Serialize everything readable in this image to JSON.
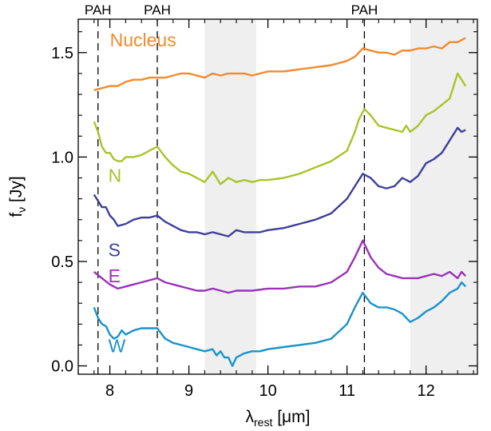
{
  "chart_data": {
    "type": "line",
    "xlabel": "λ",
    "xlabel_sub": "rest",
    "xlabel_unit": " [μm]",
    "ylabel": "f",
    "ylabel_sub": "ν",
    "ylabel_unit": " [Jy]",
    "xlim": [
      7.6,
      12.65
    ],
    "ylim": [
      -0.04,
      1.66
    ],
    "xticks": [
      8,
      9,
      10,
      11,
      12
    ],
    "xtick_labels": [
      "8",
      "9",
      "10",
      "11",
      "12"
    ],
    "yticks": [
      0.0,
      0.5,
      1.0,
      1.5
    ],
    "ytick_labels": [
      "0.0",
      "0.5",
      "1.0",
      "1.5"
    ],
    "grid": false,
    "shaded_regions": [
      [
        9.2,
        9.85
      ],
      [
        11.8,
        12.65
      ]
    ],
    "pah_lines": [
      {
        "x": 7.85,
        "label": "PAH"
      },
      {
        "x": 8.6,
        "label": "PAH"
      },
      {
        "x": 11.22,
        "label": "PAH"
      }
    ],
    "series": [
      {
        "name": "Nucleus",
        "color": "#f28a2e",
        "label_pos": [
          8.0,
          1.53
        ],
        "points": [
          [
            7.8,
            1.32
          ],
          [
            7.9,
            1.33
          ],
          [
            8.0,
            1.34
          ],
          [
            8.1,
            1.34
          ],
          [
            8.2,
            1.36
          ],
          [
            8.3,
            1.37
          ],
          [
            8.4,
            1.37
          ],
          [
            8.5,
            1.38
          ],
          [
            8.6,
            1.38
          ],
          [
            8.7,
            1.38
          ],
          [
            8.8,
            1.39
          ],
          [
            8.9,
            1.4
          ],
          [
            9.0,
            1.4
          ],
          [
            9.1,
            1.39
          ],
          [
            9.2,
            1.38
          ],
          [
            9.3,
            1.4
          ],
          [
            9.4,
            1.39
          ],
          [
            9.5,
            1.4
          ],
          [
            9.6,
            1.4
          ],
          [
            9.7,
            1.4
          ],
          [
            9.8,
            1.39
          ],
          [
            9.9,
            1.4
          ],
          [
            10.0,
            1.41
          ],
          [
            10.2,
            1.41
          ],
          [
            10.4,
            1.42
          ],
          [
            10.6,
            1.43
          ],
          [
            10.8,
            1.44
          ],
          [
            11.0,
            1.46
          ],
          [
            11.1,
            1.48
          ],
          [
            11.2,
            1.52
          ],
          [
            11.3,
            1.51
          ],
          [
            11.4,
            1.5
          ],
          [
            11.5,
            1.5
          ],
          [
            11.6,
            1.49
          ],
          [
            11.7,
            1.51
          ],
          [
            11.8,
            1.51
          ],
          [
            11.9,
            1.52
          ],
          [
            12.0,
            1.52
          ],
          [
            12.1,
            1.53
          ],
          [
            12.2,
            1.52
          ],
          [
            12.3,
            1.55
          ],
          [
            12.4,
            1.55
          ],
          [
            12.5,
            1.57
          ]
        ]
      },
      {
        "name": "N",
        "color": "#a8c42a",
        "label_pos": [
          7.98,
          0.88
        ],
        "points": [
          [
            7.8,
            1.17
          ],
          [
            7.85,
            1.12
          ],
          [
            7.9,
            1.05
          ],
          [
            7.95,
            1.02
          ],
          [
            8.0,
            1.02
          ],
          [
            8.05,
            0.99
          ],
          [
            8.1,
            0.98
          ],
          [
            8.15,
            0.98
          ],
          [
            8.2,
            1.0
          ],
          [
            8.3,
            1.0
          ],
          [
            8.4,
            1.01
          ],
          [
            8.5,
            1.03
          ],
          [
            8.6,
            1.05
          ],
          [
            8.7,
            1.0
          ],
          [
            8.8,
            0.96
          ],
          [
            8.9,
            0.93
          ],
          [
            9.0,
            0.92
          ],
          [
            9.1,
            0.9
          ],
          [
            9.2,
            0.88
          ],
          [
            9.3,
            0.93
          ],
          [
            9.35,
            0.9
          ],
          [
            9.4,
            0.87
          ],
          [
            9.5,
            0.9
          ],
          [
            9.6,
            0.88
          ],
          [
            9.7,
            0.89
          ],
          [
            9.8,
            0.88
          ],
          [
            9.9,
            0.89
          ],
          [
            10.0,
            0.89
          ],
          [
            10.2,
            0.9
          ],
          [
            10.4,
            0.92
          ],
          [
            10.6,
            0.95
          ],
          [
            10.8,
            0.98
          ],
          [
            11.0,
            1.03
          ],
          [
            11.1,
            1.12
          ],
          [
            11.15,
            1.18
          ],
          [
            11.22,
            1.23
          ],
          [
            11.3,
            1.2
          ],
          [
            11.4,
            1.15
          ],
          [
            11.5,
            1.14
          ],
          [
            11.6,
            1.13
          ],
          [
            11.7,
            1.12
          ],
          [
            11.75,
            1.15
          ],
          [
            11.8,
            1.12
          ],
          [
            11.9,
            1.15
          ],
          [
            12.0,
            1.2
          ],
          [
            12.1,
            1.22
          ],
          [
            12.2,
            1.25
          ],
          [
            12.3,
            1.28
          ],
          [
            12.4,
            1.4
          ],
          [
            12.45,
            1.37
          ],
          [
            12.5,
            1.34
          ]
        ]
      },
      {
        "name": "S",
        "color": "#3f3f9a",
        "label_pos": [
          7.98,
          0.525
        ],
        "points": [
          [
            7.8,
            0.82
          ],
          [
            7.85,
            0.79
          ],
          [
            7.9,
            0.76
          ],
          [
            7.95,
            0.76
          ],
          [
            8.0,
            0.72
          ],
          [
            8.05,
            0.7
          ],
          [
            8.1,
            0.67
          ],
          [
            8.2,
            0.68
          ],
          [
            8.3,
            0.7
          ],
          [
            8.4,
            0.71
          ],
          [
            8.5,
            0.71
          ],
          [
            8.6,
            0.72
          ],
          [
            8.7,
            0.69
          ],
          [
            8.8,
            0.67
          ],
          [
            8.9,
            0.65
          ],
          [
            9.0,
            0.64
          ],
          [
            9.1,
            0.64
          ],
          [
            9.2,
            0.63
          ],
          [
            9.3,
            0.64
          ],
          [
            9.4,
            0.63
          ],
          [
            9.5,
            0.62
          ],
          [
            9.6,
            0.65
          ],
          [
            9.7,
            0.64
          ],
          [
            9.8,
            0.64
          ],
          [
            9.9,
            0.64
          ],
          [
            10.0,
            0.65
          ],
          [
            10.2,
            0.66
          ],
          [
            10.4,
            0.68
          ],
          [
            10.6,
            0.7
          ],
          [
            10.8,
            0.73
          ],
          [
            11.0,
            0.8
          ],
          [
            11.1,
            0.86
          ],
          [
            11.2,
            0.92
          ],
          [
            11.3,
            0.9
          ],
          [
            11.4,
            0.86
          ],
          [
            11.5,
            0.85
          ],
          [
            11.6,
            0.86
          ],
          [
            11.7,
            0.9
          ],
          [
            11.8,
            0.88
          ],
          [
            11.9,
            0.91
          ],
          [
            12.0,
            0.97
          ],
          [
            12.1,
            0.99
          ],
          [
            12.2,
            1.02
          ],
          [
            12.3,
            1.08
          ],
          [
            12.4,
            1.14
          ],
          [
            12.45,
            1.12
          ],
          [
            12.5,
            1.13
          ]
        ]
      },
      {
        "name": "E",
        "color": "#9a32b8",
        "label_pos": [
          7.98,
          0.4
        ],
        "points": [
          [
            7.8,
            0.45
          ],
          [
            7.9,
            0.42
          ],
          [
            8.0,
            0.39
          ],
          [
            8.1,
            0.37
          ],
          [
            8.2,
            0.38
          ],
          [
            8.3,
            0.39
          ],
          [
            8.4,
            0.4
          ],
          [
            8.5,
            0.41
          ],
          [
            8.6,
            0.42
          ],
          [
            8.7,
            0.4
          ],
          [
            8.8,
            0.39
          ],
          [
            8.9,
            0.38
          ],
          [
            9.0,
            0.37
          ],
          [
            9.1,
            0.36
          ],
          [
            9.2,
            0.36
          ],
          [
            9.3,
            0.37
          ],
          [
            9.4,
            0.36
          ],
          [
            9.5,
            0.35
          ],
          [
            9.6,
            0.36
          ],
          [
            9.7,
            0.36
          ],
          [
            9.8,
            0.36
          ],
          [
            10.0,
            0.37
          ],
          [
            10.2,
            0.37
          ],
          [
            10.4,
            0.38
          ],
          [
            10.6,
            0.38
          ],
          [
            10.8,
            0.4
          ],
          [
            11.0,
            0.45
          ],
          [
            11.1,
            0.52
          ],
          [
            11.2,
            0.6
          ],
          [
            11.3,
            0.52
          ],
          [
            11.4,
            0.47
          ],
          [
            11.5,
            0.44
          ],
          [
            11.6,
            0.43
          ],
          [
            11.7,
            0.42
          ],
          [
            11.8,
            0.42
          ],
          [
            11.9,
            0.42
          ],
          [
            12.0,
            0.43
          ],
          [
            12.1,
            0.44
          ],
          [
            12.2,
            0.43
          ],
          [
            12.3,
            0.45
          ],
          [
            12.4,
            0.42
          ],
          [
            12.45,
            0.45
          ],
          [
            12.5,
            0.43
          ]
        ]
      },
      {
        "name": "W",
        "color": "#1a92cc",
        "label_pos": [
          7.98,
          0.065
        ],
        "points": [
          [
            7.8,
            0.28
          ],
          [
            7.85,
            0.23
          ],
          [
            7.9,
            0.2
          ],
          [
            7.95,
            0.19
          ],
          [
            8.0,
            0.15
          ],
          [
            8.05,
            0.13
          ],
          [
            8.1,
            0.14
          ],
          [
            8.15,
            0.17
          ],
          [
            8.2,
            0.15
          ],
          [
            8.3,
            0.17
          ],
          [
            8.4,
            0.18
          ],
          [
            8.5,
            0.18
          ],
          [
            8.6,
            0.18
          ],
          [
            8.7,
            0.13
          ],
          [
            8.8,
            0.11
          ],
          [
            8.9,
            0.1
          ],
          [
            9.0,
            0.09
          ],
          [
            9.1,
            0.08
          ],
          [
            9.2,
            0.07
          ],
          [
            9.3,
            0.08
          ],
          [
            9.35,
            0.05
          ],
          [
            9.4,
            0.07
          ],
          [
            9.45,
            0.04
          ],
          [
            9.5,
            0.04
          ],
          [
            9.55,
            0.0
          ],
          [
            9.6,
            0.04
          ],
          [
            9.7,
            0.06
          ],
          [
            9.8,
            0.07
          ],
          [
            9.9,
            0.07
          ],
          [
            10.0,
            0.08
          ],
          [
            10.2,
            0.09
          ],
          [
            10.4,
            0.1
          ],
          [
            10.6,
            0.11
          ],
          [
            10.8,
            0.13
          ],
          [
            11.0,
            0.2
          ],
          [
            11.1,
            0.28
          ],
          [
            11.2,
            0.35
          ],
          [
            11.3,
            0.3
          ],
          [
            11.4,
            0.28
          ],
          [
            11.5,
            0.28
          ],
          [
            11.6,
            0.27
          ],
          [
            11.7,
            0.25
          ],
          [
            11.8,
            0.21
          ],
          [
            11.9,
            0.23
          ],
          [
            12.0,
            0.26
          ],
          [
            12.1,
            0.28
          ],
          [
            12.2,
            0.31
          ],
          [
            12.3,
            0.35
          ],
          [
            12.4,
            0.37
          ],
          [
            12.45,
            0.4
          ],
          [
            12.5,
            0.38
          ]
        ]
      }
    ]
  }
}
